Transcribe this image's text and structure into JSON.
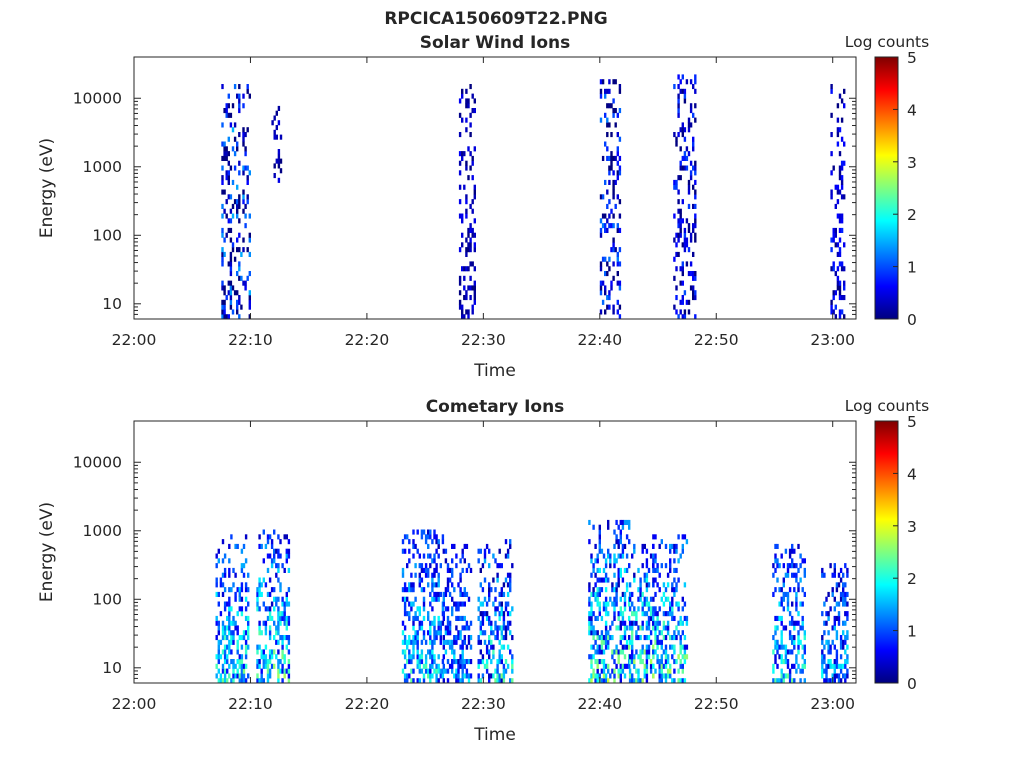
{
  "figure_title": "RPCICA150609T22.PNG",
  "colormap": [
    "#00007f",
    "#0000ff",
    "#007fff",
    "#00ffff",
    "#7fff7f",
    "#ffff00",
    "#ff7f00",
    "#ff0000",
    "#7f0000"
  ],
  "chart_data": [
    {
      "type": "heatmap",
      "title": "Solar Wind Ions",
      "xlabel": "Time",
      "ylabel": "Energy (eV)",
      "x_range_minutes": [
        0,
        62
      ],
      "x_ticks": [
        "22:00",
        "22:10",
        "22:20",
        "22:30",
        "22:40",
        "22:50",
        "23:00"
      ],
      "y_scale": "log",
      "y_range": [
        6,
        40000
      ],
      "y_ticks": [
        "10",
        "100",
        "1000",
        "10000"
      ],
      "colorbar": {
        "label": "Log counts",
        "range": [
          0,
          5
        ],
        "ticks": [
          "0",
          "1",
          "2",
          "3",
          "4",
          "5"
        ]
      },
      "bursts": [
        {
          "t_start": 7.5,
          "t_end": 9.9,
          "e_low": 6,
          "e_high": 14000,
          "mean_log_counts": 0.3,
          "peak_log_counts": 1.9
        },
        {
          "t_start": 11.8,
          "t_end": 12.6,
          "e_low": 500,
          "e_high": 8000,
          "mean_log_counts": 0.2,
          "peak_log_counts": 0.6
        },
        {
          "t_start": 27.9,
          "t_end": 29.3,
          "e_low": 6,
          "e_high": 15000,
          "mean_log_counts": 0.2,
          "peak_log_counts": 0.7
        },
        {
          "t_start": 40.0,
          "t_end": 41.8,
          "e_low": 6,
          "e_high": 18000,
          "mean_log_counts": 0.25,
          "peak_log_counts": 1.6
        },
        {
          "t_start": 46.3,
          "t_end": 48.2,
          "e_low": 6,
          "e_high": 20000,
          "mean_log_counts": 0.3,
          "peak_log_counts": 1.2
        },
        {
          "t_start": 59.8,
          "t_end": 61.0,
          "e_low": 6,
          "e_high": 14000,
          "mean_log_counts": 0.3,
          "peak_log_counts": 1.0
        }
      ]
    },
    {
      "type": "heatmap",
      "title": "Cometary Ions",
      "xlabel": "Time",
      "ylabel": "Energy (eV)",
      "x_range_minutes": [
        0,
        62
      ],
      "x_ticks": [
        "22:00",
        "22:10",
        "22:20",
        "22:30",
        "22:40",
        "22:50",
        "23:00"
      ],
      "y_scale": "log",
      "y_range": [
        6,
        40000
      ],
      "y_ticks": [
        "10",
        "100",
        "1000",
        "10000"
      ],
      "colorbar": {
        "label": "Log counts",
        "range": [
          0,
          5
        ],
        "ticks": [
          "0",
          "1",
          "2",
          "3",
          "4",
          "5"
        ]
      },
      "bursts": [
        {
          "t_start": 7.0,
          "t_end": 9.8,
          "e_low": 6,
          "e_high": 800,
          "mean_log_counts": 1.2,
          "peak_log_counts": 2.6
        },
        {
          "t_start": 10.5,
          "t_end": 13.2,
          "e_low": 6,
          "e_high": 1000,
          "mean_log_counts": 1.2,
          "peak_log_counts": 2.8
        },
        {
          "t_start": 23.0,
          "t_end": 26.5,
          "e_low": 6,
          "e_high": 900,
          "mean_log_counts": 1.1,
          "peak_log_counts": 2.4
        },
        {
          "t_start": 26.5,
          "t_end": 29.0,
          "e_low": 6,
          "e_high": 600,
          "mean_log_counts": 0.9,
          "peak_log_counts": 2.0
        },
        {
          "t_start": 29.5,
          "t_end": 32.5,
          "e_low": 6,
          "e_high": 700,
          "mean_log_counts": 1.0,
          "peak_log_counts": 2.6
        },
        {
          "t_start": 39.0,
          "t_end": 42.5,
          "e_low": 6,
          "e_high": 1300,
          "mean_log_counts": 1.2,
          "peak_log_counts": 2.9
        },
        {
          "t_start": 42.5,
          "t_end": 44.5,
          "e_low": 6,
          "e_high": 600,
          "mean_log_counts": 1.3,
          "peak_log_counts": 3.2
        },
        {
          "t_start": 44.5,
          "t_end": 47.5,
          "e_low": 6,
          "e_high": 800,
          "mean_log_counts": 1.3,
          "peak_log_counts": 2.9
        },
        {
          "t_start": 54.8,
          "t_end": 57.5,
          "e_low": 6,
          "e_high": 600,
          "mean_log_counts": 1.1,
          "peak_log_counts": 2.5
        },
        {
          "t_start": 59.0,
          "t_end": 61.2,
          "e_low": 6,
          "e_high": 300,
          "mean_log_counts": 0.9,
          "peak_log_counts": 2.1
        }
      ]
    }
  ]
}
